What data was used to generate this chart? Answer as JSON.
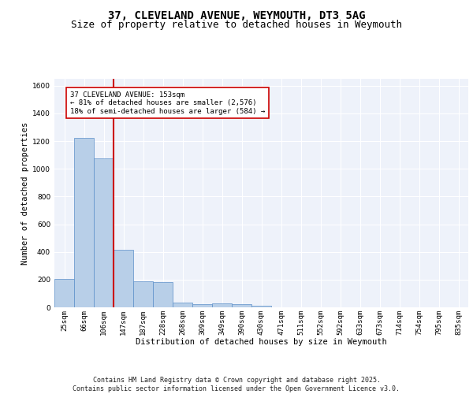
{
  "title_line1": "37, CLEVELAND AVENUE, WEYMOUTH, DT3 5AG",
  "title_line2": "Size of property relative to detached houses in Weymouth",
  "xlabel": "Distribution of detached houses by size in Weymouth",
  "ylabel": "Number of detached properties",
  "categories": [
    "25sqm",
    "66sqm",
    "106sqm",
    "147sqm",
    "187sqm",
    "228sqm",
    "268sqm",
    "309sqm",
    "349sqm",
    "390sqm",
    "430sqm",
    "471sqm",
    "511sqm",
    "552sqm",
    "592sqm",
    "633sqm",
    "673sqm",
    "714sqm",
    "754sqm",
    "795sqm",
    "835sqm"
  ],
  "values": [
    205,
    1225,
    1075,
    415,
    185,
    180,
    35,
    25,
    30,
    20,
    10,
    0,
    0,
    0,
    0,
    0,
    0,
    0,
    0,
    0,
    0
  ],
  "bar_color": "#b8cfe8",
  "bar_edge_color": "#5b8fc9",
  "vline_color": "#cc0000",
  "vline_pos": 2.5,
  "annotation_text": "37 CLEVELAND AVENUE: 153sqm\n← 81% of detached houses are smaller (2,576)\n18% of semi-detached houses are larger (584) →",
  "annotation_box_facecolor": "#ffffff",
  "annotation_box_edgecolor": "#cc0000",
  "ylim": [
    0,
    1650
  ],
  "yticks": [
    0,
    200,
    400,
    600,
    800,
    1000,
    1200,
    1400,
    1600
  ],
  "background_color": "#eef2fa",
  "grid_color": "#ffffff",
  "footer_text": "Contains HM Land Registry data © Crown copyright and database right 2025.\nContains public sector information licensed under the Open Government Licence v3.0.",
  "title_fontsize": 10,
  "subtitle_fontsize": 9,
  "label_fontsize": 7.5,
  "tick_fontsize": 6.5,
  "footer_fontsize": 6,
  "ann_fontsize": 6.5
}
